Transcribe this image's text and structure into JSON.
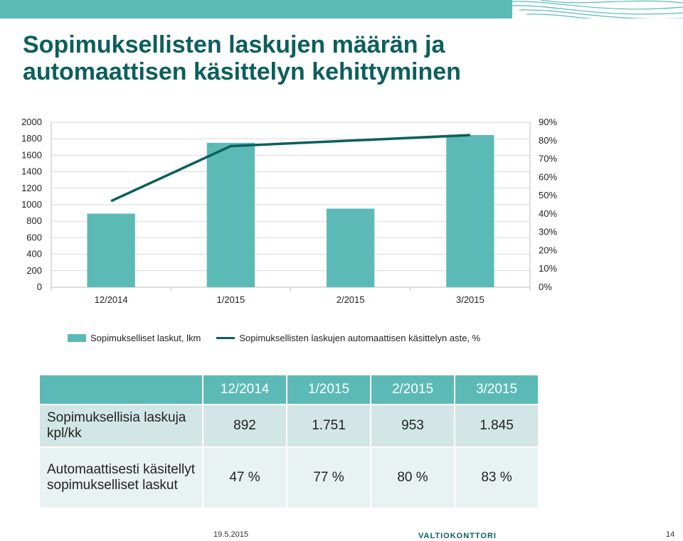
{
  "colors": {
    "brand": "#0b5f5c",
    "bar": "#5bbab6",
    "header_bg": "#5bbab6",
    "row1_bg": "#d3e6e6",
    "row2_bg": "#e9f2f2"
  },
  "title": "Sopimuksellisten laskujen määrän ja automaattisen käsittelyn kehittyminen",
  "chart_data": {
    "type": "bar",
    "categories": [
      "12/2014",
      "1/2015",
      "2/2015",
      "3/2015"
    ],
    "series": [
      {
        "name": "Sopimukselliset laskut, lkm",
        "type": "bar",
        "axis": "left",
        "values": [
          892,
          1751,
          953,
          1845
        ]
      },
      {
        "name": "Sopimuksellisten laskujen automaattisen käsittelyn aste, %",
        "type": "line",
        "axis": "right",
        "values": [
          47,
          77,
          80,
          83
        ]
      }
    ],
    "y_left": {
      "ticks": [
        "0",
        "200",
        "400",
        "600",
        "800",
        "1000",
        "1200",
        "1400",
        "1600",
        "1800",
        "2000"
      ],
      "range": [
        0,
        2000
      ]
    },
    "y_right": {
      "ticks": [
        "0%",
        "10%",
        "20%",
        "30%",
        "40%",
        "50%",
        "60%",
        "70%",
        "80%",
        "90%"
      ],
      "range": [
        0,
        90
      ]
    },
    "grid": true,
    "legend_position": "bottom"
  },
  "table": {
    "columns": [
      "12/2014",
      "1/2015",
      "2/2015",
      "3/2015"
    ],
    "rows": [
      {
        "label": "Sopimuksellisia laskuja kpl/kk",
        "values": [
          "892",
          "1.751",
          "953",
          "1.845"
        ]
      },
      {
        "label": "Automaattisesti käsitellyt sopimukselliset laskut",
        "values": [
          "47 %",
          "77 %",
          "80 %",
          "83 %"
        ]
      }
    ]
  },
  "footer": {
    "date": "19.5.2015",
    "logo": "VALTIOKONTTORI",
    "page": "14"
  }
}
